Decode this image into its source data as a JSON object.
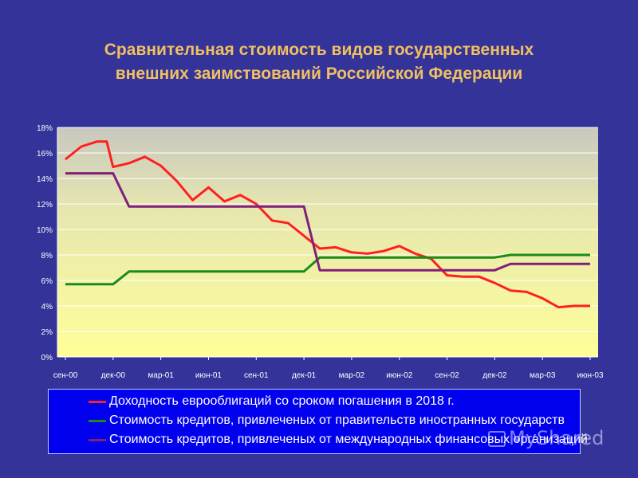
{
  "slide": {
    "title_line1": "Сравнительная стоимость видов государственных",
    "title_line2": "внешних заимствований Российской Федерации"
  },
  "chart_data": {
    "type": "line",
    "title": "",
    "xlabel": "",
    "ylabel": "",
    "ylim": [
      0,
      18
    ],
    "yticks": [
      "0%",
      "2%",
      "4%",
      "6%",
      "8%",
      "10%",
      "12%",
      "14%",
      "16%",
      "18%"
    ],
    "xticks": [
      "сен-00",
      "дек-00",
      "мар-01",
      "июн-01",
      "сен-01",
      "дек-01",
      "мар-02",
      "июн-02",
      "сен-02",
      "дек-02",
      "мар-03",
      "июн-03"
    ],
    "grid": true,
    "legend_position": "bottom",
    "series": [
      {
        "name": "Доходность еврооблигаций со сроком погашения в 2018 г.",
        "color": "#ff2020",
        "x": [
          0,
          1,
          2,
          2.6,
          3,
          4,
          5,
          6,
          7,
          8,
          9,
          10,
          11,
          12,
          13,
          14,
          15,
          16,
          17,
          18,
          19,
          20,
          21,
          22,
          23,
          24,
          25,
          26,
          27,
          28,
          29,
          30,
          31,
          32,
          33
        ],
        "values": [
          15.5,
          16.5,
          16.9,
          16.9,
          14.9,
          15.2,
          15.7,
          15.0,
          13.8,
          12.3,
          13.3,
          12.2,
          12.7,
          12.0,
          10.7,
          10.5,
          9.5,
          8.5,
          8.6,
          8.2,
          8.1,
          8.3,
          8.7,
          8.1,
          7.7,
          6.4,
          6.3,
          6.3,
          5.8,
          5.2,
          5.1,
          4.6,
          3.9,
          4.0,
          4.0
        ]
      },
      {
        "name": "Стоимость кредитов, привлеченых от правительств иностранных государств",
        "color": "#1a8c1a",
        "x": [
          0,
          3,
          4,
          15,
          16,
          27,
          28,
          33
        ],
        "values": [
          5.7,
          5.7,
          6.7,
          6.7,
          7.8,
          7.8,
          8.0,
          8.0
        ]
      },
      {
        "name": "Стоимость кредитов, привлеченых от международных финансовых организаций",
        "color": "#80207a",
        "x": [
          0,
          3,
          4,
          15,
          16,
          27,
          28,
          33
        ],
        "values": [
          14.4,
          14.4,
          11.8,
          11.8,
          6.8,
          6.8,
          7.3,
          7.3
        ]
      }
    ]
  },
  "watermark": {
    "text": "MyShared"
  }
}
